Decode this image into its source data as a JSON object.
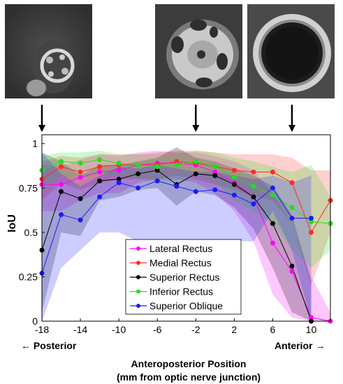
{
  "chart_data": {
    "type": "line",
    "ylabel": "IoU",
    "xlabel_line1": "Anteroposterior Position",
    "xlabel_line2": "(mm from optic nerve junction)",
    "direction_left": "← Posterior",
    "direction_right": "Anterior →",
    "xlim": [
      -18,
      12
    ],
    "ylim": [
      0,
      1.05
    ],
    "x_ticks": [
      "-18",
      "-14",
      "-10",
      "-6",
      "-2",
      "2",
      "6",
      "10"
    ],
    "y_ticks": [
      "0",
      "0.25",
      "0.5",
      "0.75",
      "1"
    ],
    "legend_position": "bottom-center",
    "series": [
      {
        "name": "Lateral Rectus",
        "color": "#ff00ff",
        "x": [
          -18,
          -16,
          -14,
          -12,
          -10,
          -8,
          -6,
          -4,
          -2,
          0,
          2,
          4,
          6,
          8,
          10,
          12
        ],
        "values": [
          0.77,
          0.77,
          0.81,
          0.84,
          0.85,
          0.88,
          0.89,
          0.89,
          0.88,
          0.84,
          0.78,
          0.7,
          0.44,
          0.28,
          0.02,
          0.0
        ],
        "upper": [
          0.88,
          0.87,
          0.91,
          0.94,
          0.93,
          0.95,
          0.96,
          0.95,
          0.95,
          0.93,
          0.9,
          0.85,
          0.72,
          0.55,
          0.25,
          0.05
        ],
        "lower": [
          0.62,
          0.62,
          0.68,
          0.72,
          0.72,
          0.78,
          0.8,
          0.8,
          0.78,
          0.72,
          0.62,
          0.45,
          0.15,
          0.02,
          0.0,
          0.0
        ]
      },
      {
        "name": "Medial Rectus",
        "color": "#ff2a2a",
        "x": [
          -18,
          -16,
          -14,
          -12,
          -10,
          -8,
          -6,
          -4,
          -2,
          0,
          2,
          4,
          6,
          8,
          10,
          12
        ],
        "values": [
          0.8,
          0.87,
          0.84,
          0.87,
          0.88,
          0.88,
          0.88,
          0.9,
          0.89,
          0.87,
          0.85,
          0.84,
          0.84,
          0.78,
          0.5,
          0.68
        ],
        "upper": [
          0.9,
          0.93,
          0.92,
          0.94,
          0.94,
          0.94,
          0.95,
          0.96,
          0.96,
          0.95,
          0.94,
          0.94,
          0.94,
          0.92,
          0.85,
          0.85
        ],
        "lower": [
          0.68,
          0.78,
          0.74,
          0.78,
          0.8,
          0.8,
          0.8,
          0.82,
          0.8,
          0.77,
          0.74,
          0.7,
          0.68,
          0.55,
          0.2,
          0.5
        ]
      },
      {
        "name": "Superior Rectus",
        "color": "#000000",
        "x": [
          -18,
          -16,
          -14,
          -12,
          -10,
          -8,
          -6,
          -4,
          -2,
          0,
          2,
          4,
          6,
          8,
          10
        ],
        "values": [
          0.4,
          0.73,
          0.69,
          0.79,
          0.8,
          0.83,
          0.85,
          0.77,
          0.83,
          0.82,
          0.77,
          0.7,
          0.55,
          0.31,
          0.0
        ],
        "upper": [
          0.95,
          0.9,
          0.82,
          0.88,
          0.88,
          0.9,
          0.92,
          0.98,
          0.92,
          0.9,
          0.86,
          0.82,
          0.76,
          0.6,
          0.22
        ],
        "lower": [
          0.05,
          0.5,
          0.48,
          0.68,
          0.7,
          0.74,
          0.75,
          0.65,
          0.73,
          0.71,
          0.64,
          0.52,
          0.3,
          0.05,
          0.0
        ]
      },
      {
        "name": "Inferior Rectus",
        "color": "#22dd22",
        "x": [
          -18,
          -16,
          -14,
          -12,
          -10,
          -8,
          -6,
          -4,
          -2,
          0,
          2,
          4,
          6,
          8,
          10,
          12
        ],
        "values": [
          0.85,
          0.9,
          0.89,
          0.91,
          0.89,
          0.88,
          0.87,
          0.88,
          0.9,
          0.87,
          0.81,
          0.76,
          0.71,
          0.64,
          0.56,
          0.55
        ],
        "upper": [
          0.93,
          0.95,
          0.95,
          0.96,
          0.94,
          0.94,
          0.94,
          0.94,
          0.96,
          0.95,
          0.92,
          0.9,
          0.87,
          0.84,
          0.88,
          0.7
        ],
        "lower": [
          0.74,
          0.82,
          0.8,
          0.83,
          0.82,
          0.8,
          0.79,
          0.79,
          0.82,
          0.78,
          0.68,
          0.62,
          0.55,
          0.4,
          0.3,
          0.4
        ]
      },
      {
        "name": "Superior Oblique",
        "color": "#1a1aff",
        "x": [
          -18,
          -16,
          -14,
          -12,
          -10,
          -8,
          -6,
          -4,
          -2,
          0,
          2,
          4,
          6,
          8,
          10
        ],
        "values": [
          0.27,
          0.6,
          0.57,
          0.7,
          0.78,
          0.75,
          0.79,
          0.76,
          0.73,
          0.74,
          0.71,
          0.66,
          0.75,
          0.58,
          0.58
        ],
        "upper": [
          0.95,
          0.83,
          0.76,
          0.82,
          0.87,
          0.86,
          0.88,
          0.86,
          0.84,
          0.84,
          0.82,
          0.8,
          0.82,
          0.78,
          0.82
        ],
        "lower": [
          0.0,
          0.3,
          0.4,
          0.5,
          0.5,
          0.45,
          0.45,
          0.45,
          0.4,
          0.38,
          0.45,
          0.45,
          0.62,
          0.4,
          0.0
        ]
      }
    ]
  },
  "images": [
    {
      "name": "posterior-mri-slice",
      "points_to_x": -18
    },
    {
      "name": "middle-mri-slice",
      "points_to_x": -2
    },
    {
      "name": "anterior-mri-slice",
      "points_to_x": 8
    }
  ]
}
